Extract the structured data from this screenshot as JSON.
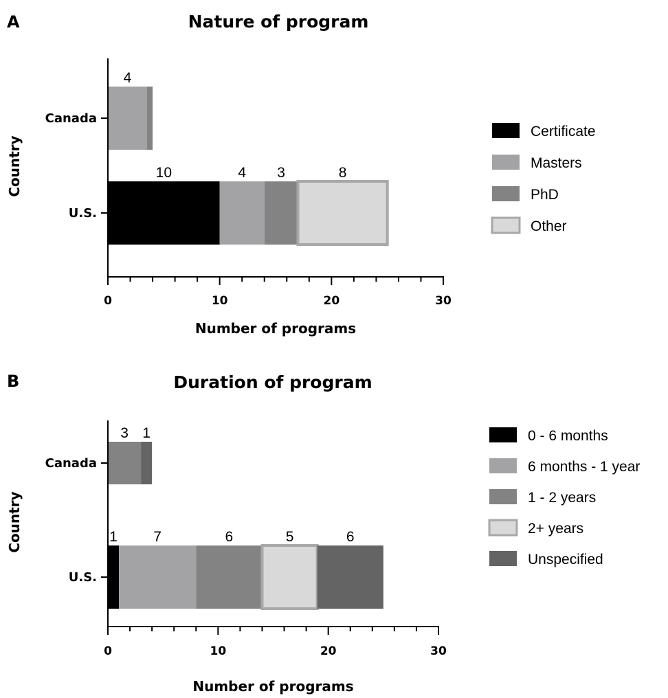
{
  "chart_data": [
    {
      "type": "bar",
      "orientation": "horizontal",
      "stacked": true,
      "panel": "A",
      "title": "Nature of program",
      "xlabel": "Number of programs",
      "ylabel": "Country",
      "xlim": [
        0,
        30
      ],
      "xticks": [
        "0",
        "10",
        "20",
        "30"
      ],
      "categories": [
        "Canada",
        "U.S."
      ],
      "series": [
        {
          "name": "Certificate",
          "values": [
            0,
            10
          ],
          "color": "#000000",
          "labels": [
            "",
            "10"
          ]
        },
        {
          "name": "Masters",
          "values": [
            3.5,
            4
          ],
          "color": "#a3a3a6",
          "labels": [
            "4",
            "4"
          ]
        },
        {
          "name": "PhD",
          "values": [
            0.5,
            3
          ],
          "color": "#838383",
          "labels": [
            "",
            "3"
          ]
        },
        {
          "name": "Other",
          "values": [
            0,
            8
          ],
          "color": "#d9d9d9",
          "labels": [
            "",
            "8"
          ]
        }
      ],
      "legend": "right"
    },
    {
      "type": "bar",
      "orientation": "horizontal",
      "stacked": true,
      "panel": "B",
      "title": "Duration of program",
      "xlabel": "Number of programs",
      "ylabel": "Country",
      "xlim": [
        0,
        30
      ],
      "xticks": [
        "0",
        "10",
        "20",
        "30"
      ],
      "categories": [
        "Canada",
        "U.S."
      ],
      "series": [
        {
          "name": "0 - 6 months",
          "values": [
            0,
            1
          ],
          "color": "#000000",
          "labels": [
            "",
            "1"
          ]
        },
        {
          "name": "6 months - 1 year",
          "values": [
            0,
            7
          ],
          "color": "#a3a3a6",
          "labels": [
            "",
            "7"
          ]
        },
        {
          "name": "1 - 2 years",
          "values": [
            3,
            6
          ],
          "color": "#838383",
          "labels": [
            "3",
            "6"
          ]
        },
        {
          "name": "2+ years",
          "values": [
            0,
            5
          ],
          "color": "#d9d9d9",
          "labels": [
            "",
            "5"
          ]
        },
        {
          "name": "Unspecified",
          "values": [
            1,
            6
          ],
          "color": "#646464",
          "labels": [
            "1",
            "6"
          ]
        }
      ],
      "legend": "right"
    }
  ]
}
